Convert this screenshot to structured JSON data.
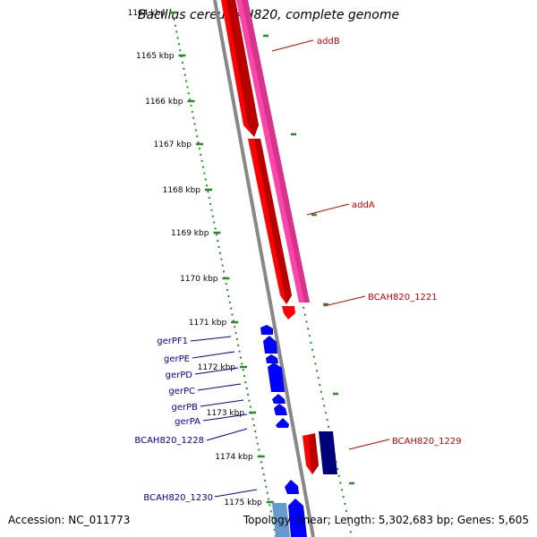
{
  "title": "Bacillus cereus AH820, complete genome",
  "footer": {
    "accession": "Accession: NC_011773",
    "summary": "Topology: linear; Length: 5,302,683 bp; Genes: 5,605"
  },
  "ticks": [
    {
      "label": "1164 kbp"
    },
    {
      "label": "1165 kbp"
    },
    {
      "label": "1166 kbp"
    },
    {
      "label": "1167 kbp"
    },
    {
      "label": "1168 kbp"
    },
    {
      "label": "1169 kbp"
    },
    {
      "label": "1170 kbp"
    },
    {
      "label": "1171 kbp"
    },
    {
      "label": "1172 kbp"
    },
    {
      "label": "1173 kbp"
    },
    {
      "label": "1174 kbp"
    },
    {
      "label": "1175 kbp"
    }
  ],
  "gene_labels": [
    {
      "text": "addB",
      "side": "right",
      "color": "#cc0000"
    },
    {
      "text": "addA",
      "side": "right",
      "color": "#cc0000"
    },
    {
      "text": "BCAH820_1221",
      "side": "right",
      "color": "#cc0000"
    },
    {
      "text": "BCAH820_1229",
      "side": "right",
      "color": "#cc0000"
    },
    {
      "text": "gerPF1",
      "side": "left",
      "color": "#0000aa"
    },
    {
      "text": "gerPE",
      "side": "left",
      "color": "#0000aa"
    },
    {
      "text": "gerPD",
      "side": "left",
      "color": "#0000aa"
    },
    {
      "text": "gerPC",
      "side": "left",
      "color": "#0000aa"
    },
    {
      "text": "gerPB",
      "side": "left",
      "color": "#0000aa"
    },
    {
      "text": "gerPA",
      "side": "left",
      "color": "#0000aa"
    },
    {
      "text": "BCAH820_1228",
      "side": "left",
      "color": "#0000aa"
    },
    {
      "text": "BCAH820_1230",
      "side": "left",
      "color": "#0000aa"
    }
  ],
  "colors": {
    "backbone": "#888888",
    "tick": "#2a8a2a",
    "forward_gene": "#ff0000",
    "forward_gene_dark": "#b80000",
    "pink_gene": "#ff44aa",
    "reverse_gene": "#0000ff",
    "dark_gene": "#00007a",
    "light_blue_gene": "#6699cc"
  }
}
